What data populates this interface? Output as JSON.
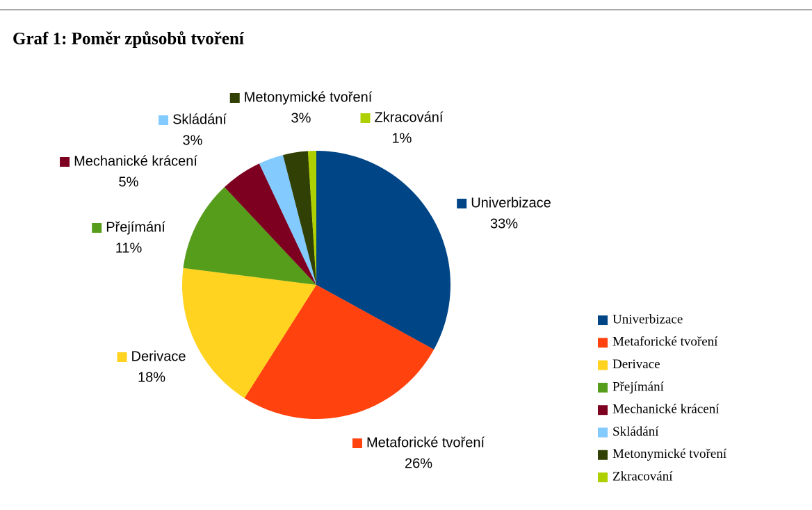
{
  "chart_data": {
    "type": "pie",
    "title": "Graf 1: Poměr způsobů tvoření",
    "categories": [
      "Univerbizace",
      "Metaforické tvoření",
      "Derivace",
      "Přejímání",
      "Mechanické krácení",
      "Skládání",
      "Metonymické tvoření",
      "Zkracování"
    ],
    "values": [
      33,
      26,
      18,
      11,
      5,
      3,
      3,
      1
    ],
    "value_labels": [
      "33%",
      "26%",
      "18%",
      "11%",
      "5%",
      "3%",
      "3%",
      "1%"
    ],
    "colors": [
      "#004586",
      "#ff420e",
      "#ffd320",
      "#579d1c",
      "#7e0021",
      "#83caff",
      "#314004",
      "#aecf00"
    ],
    "legend": "right"
  }
}
